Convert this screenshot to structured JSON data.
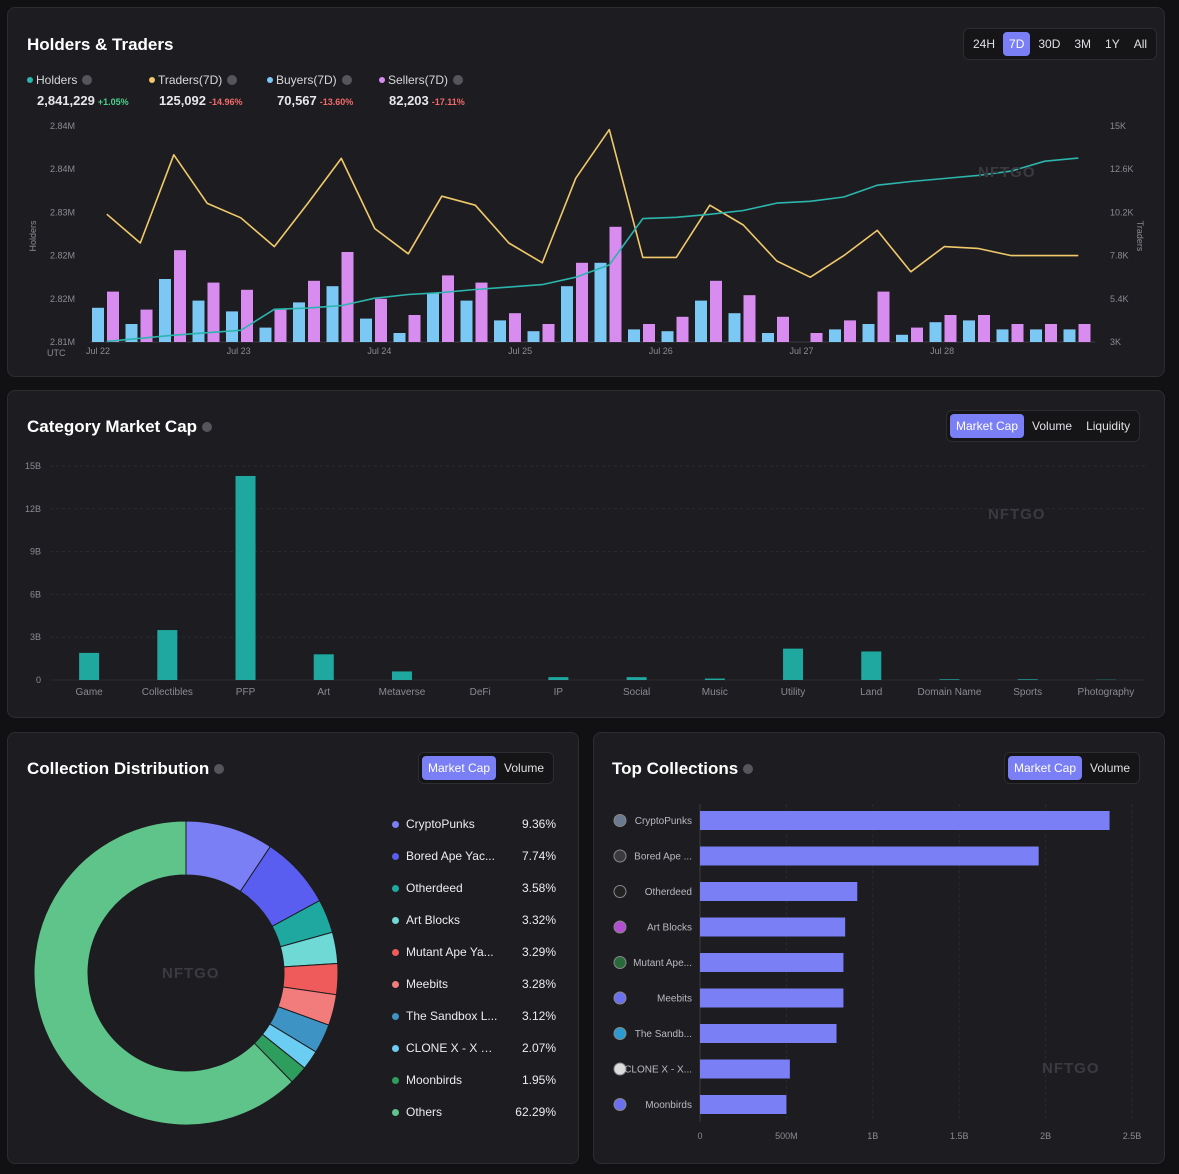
{
  "holders_traders": {
    "title": "Holders & Traders",
    "ranges": [
      "24H",
      "7D",
      "30D",
      "3M",
      "1Y",
      "All"
    ],
    "active_range": "7D",
    "legend": [
      {
        "label": "Holders",
        "value": "2,841,229",
        "change": "+1.05%",
        "color": "#2bb5ad",
        "trend": "pos"
      },
      {
        "label": "Traders(7D)",
        "value": "125,092",
        "change": "-14.96%",
        "color": "#f1c96a",
        "trend": "neg"
      },
      {
        "label": "Buyers(7D)",
        "value": "70,567",
        "change": "-13.60%",
        "color": "#7cc8f4",
        "trend": "neg"
      },
      {
        "label": "Sellers(7D)",
        "value": "82,203",
        "change": "-17.11%",
        "color": "#d98cf0",
        "trend": "neg"
      }
    ],
    "left_axis_label": "Holders",
    "right_axis_label": "Traders",
    "utc_label": "UTC",
    "watermark": "NFTGO"
  },
  "category": {
    "title": "Category Market Cap",
    "tabs": [
      "Market Cap",
      "Volume",
      "Liquidity"
    ],
    "active_tab": "Market Cap",
    "watermark": "NFTGO"
  },
  "distribution": {
    "title": "Collection Distribution",
    "tabs": [
      "Market Cap",
      "Volume"
    ],
    "active_tab": "Market Cap",
    "watermark": "NFTGO",
    "items": [
      {
        "name": "CryptoPunks",
        "pct": "9.36%",
        "color": "#7b7ff5"
      },
      {
        "name": "Bored Ape Yac...",
        "pct": "7.74%",
        "color": "#5a5ef0"
      },
      {
        "name": "Otherdeed",
        "pct": "3.58%",
        "color": "#1fa8a0"
      },
      {
        "name": "Art Blocks",
        "pct": "3.32%",
        "color": "#6fd9d6"
      },
      {
        "name": "Mutant Ape Ya...",
        "pct": "3.29%",
        "color": "#ef5a5a"
      },
      {
        "name": "Meebits",
        "pct": "3.28%",
        "color": "#f27b7b"
      },
      {
        "name": "The Sandbox L...",
        "pct": "3.12%",
        "color": "#3d94c4"
      },
      {
        "name": "CLONE X - X TA...",
        "pct": "2.07%",
        "color": "#6ccdf2"
      },
      {
        "name": "Moonbirds",
        "pct": "1.95%",
        "color": "#2e9e5e"
      },
      {
        "name": "Others",
        "pct": "62.29%",
        "color": "#5fc48a"
      }
    ]
  },
  "top_collections": {
    "title": "Top Collections",
    "tabs": [
      "Market Cap",
      "Volume"
    ],
    "active_tab": "Market Cap",
    "watermark": "NFTGO"
  },
  "chart_data": [
    {
      "type": "line",
      "title": "Holders & Traders",
      "x_ticks": [
        "Jul 22",
        "Jul 23",
        "Jul 24",
        "Jul 25",
        "Jul 26",
        "Jul 27",
        "Jul 28"
      ],
      "y_left_ticks": [
        "2.81M",
        "2.82M",
        "2.82M",
        "2.83M",
        "2.84M",
        "2.84M"
      ],
      "y_left_range": [
        2810000,
        2845000
      ],
      "y_right_ticks": [
        "3K",
        "5.4K",
        "7.8K",
        "10.2K",
        "12.6K",
        "15K"
      ],
      "y_right_range": [
        3000,
        15000
      ],
      "series": [
        {
          "name": "Holders",
          "axis": "left",
          "kind": "line",
          "color": "#2bb5ad",
          "values": [
            2810100,
            2810600,
            2811100,
            2811500,
            2811900,
            2815300,
            2815500,
            2815900,
            2817100,
            2817700,
            2818000,
            2818500,
            2818900,
            2819300,
            2820500,
            2822500,
            2830000,
            2830200,
            2830700,
            2831300,
            2832500,
            2832800,
            2833500,
            2835400,
            2836000,
            2836500,
            2837000,
            2837700,
            2839300,
            2839800
          ]
        },
        {
          "name": "Traders(7D)",
          "axis": "right",
          "kind": "line",
          "color": "#f1c96a",
          "values": [
            10100,
            8500,
            13400,
            10700,
            9900,
            8300,
            10700,
            13200,
            9300,
            7900,
            11100,
            10600,
            8500,
            7400,
            12100,
            14800,
            7700,
            7700,
            10600,
            9500,
            7500,
            6600,
            7800,
            9200,
            6900,
            8300,
            8200,
            7800,
            7800,
            7800
          ]
        },
        {
          "name": "Buyers(7D)",
          "axis": "right",
          "kind": "bar",
          "color": "#7cc8f4",
          "values": [
            4900,
            4000,
            6500,
            5300,
            4700,
            3800,
            5200,
            6100,
            4300,
            3500,
            5700,
            5300,
            4200,
            3600,
            6100,
            7400,
            3700,
            3600,
            5300,
            4600,
            3500,
            3000,
            3700,
            4000,
            3400,
            4100,
            4200,
            3700,
            3700,
            3700
          ]
        },
        {
          "name": "Sellers(7D)",
          "axis": "right",
          "kind": "bar",
          "color": "#d98cf0",
          "values": [
            5800,
            4800,
            8100,
            6300,
            5900,
            4800,
            6400,
            8000,
            5400,
            4500,
            6700,
            6300,
            4600,
            4000,
            7400,
            9400,
            4000,
            4400,
            6400,
            5600,
            4400,
            3500,
            4200,
            5800,
            3800,
            4500,
            4500,
            4000,
            4000,
            4000
          ]
        }
      ]
    },
    {
      "type": "bar",
      "title": "Category Market Cap",
      "categories": [
        "Game",
        "Collectibles",
        "PFP",
        "Art",
        "Metaverse",
        "DeFi",
        "IP",
        "Social",
        "Music",
        "Utility",
        "Land",
        "Domain Name",
        "Sports",
        "Photography"
      ],
      "values": [
        1.9,
        3.5,
        14.3,
        1.8,
        0.6,
        0.0,
        0.2,
        0.2,
        0.1,
        2.2,
        2.0,
        0.05,
        0.05,
        0.02
      ],
      "unit": "B",
      "y_ticks": [
        "0",
        "3B",
        "6B",
        "9B",
        "12B",
        "15B"
      ],
      "ylim": [
        0,
        15
      ],
      "color": "#1fa8a0"
    },
    {
      "type": "pie",
      "title": "Collection Distribution",
      "categories": [
        "CryptoPunks",
        "Bored Ape Yac...",
        "Otherdeed",
        "Art Blocks",
        "Mutant Ape Ya...",
        "Meebits",
        "The Sandbox L...",
        "CLONE X - X TA...",
        "Moonbirds",
        "Others"
      ],
      "values": [
        9.36,
        7.74,
        3.58,
        3.32,
        3.29,
        3.28,
        3.12,
        2.07,
        1.95,
        62.29
      ],
      "donut": true
    },
    {
      "type": "bar",
      "orientation": "horizontal",
      "title": "Top Collections",
      "categories": [
        "CryptoPunks",
        "Bored Ape ...",
        "Otherdeed",
        "Art Blocks",
        "Mutant Ape...",
        "Meebits",
        "The Sandb...",
        "CLONE X - X...",
        "Moonbirds"
      ],
      "values": [
        2.37,
        1.96,
        0.91,
        0.84,
        0.83,
        0.83,
        0.79,
        0.52,
        0.5
      ],
      "unit": "B",
      "x_ticks": [
        "0",
        "500M",
        "1B",
        "1.5B",
        "2B",
        "2.5B"
      ],
      "xlim": [
        0,
        2.5
      ],
      "color": "#7b7ff5"
    }
  ]
}
